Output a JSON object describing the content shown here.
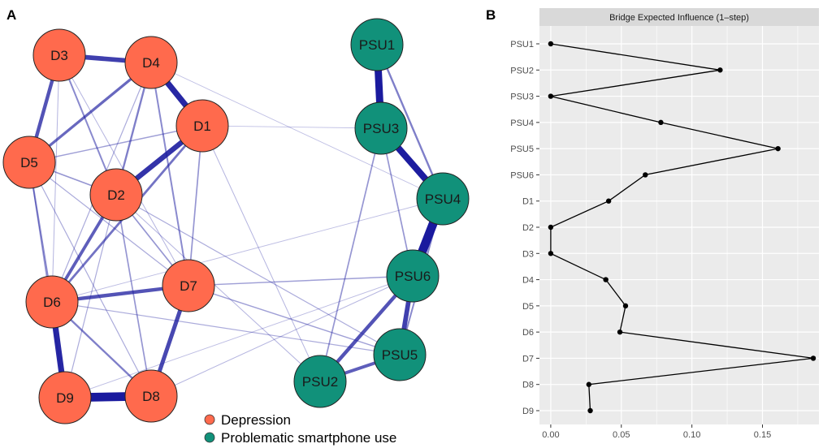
{
  "panels": {
    "a_label": "A",
    "b_label": "B"
  },
  "colors": {
    "depression": "#FF6A4D",
    "psu": "#11917A",
    "edge": "#1a1a9e",
    "panel_bg": "#EBEBEB",
    "strip_bg": "#D9D9D9",
    "grid": "#FFFFFF"
  },
  "network": {
    "nodes": [
      {
        "id": "D3",
        "group": "depression"
      },
      {
        "id": "D4",
        "group": "depression"
      },
      {
        "id": "D1",
        "group": "depression"
      },
      {
        "id": "D5",
        "group": "depression"
      },
      {
        "id": "D2",
        "group": "depression"
      },
      {
        "id": "D6",
        "group": "depression"
      },
      {
        "id": "D7",
        "group": "depression"
      },
      {
        "id": "D9",
        "group": "depression"
      },
      {
        "id": "D8",
        "group": "depression"
      },
      {
        "id": "PSU1",
        "group": "psu"
      },
      {
        "id": "PSU3",
        "group": "psu"
      },
      {
        "id": "PSU4",
        "group": "psu"
      },
      {
        "id": "PSU6",
        "group": "psu"
      },
      {
        "id": "PSU5",
        "group": "psu"
      },
      {
        "id": "PSU2",
        "group": "psu"
      }
    ],
    "edges": [
      {
        "from": "D9",
        "to": "D8",
        "weight": 1.0
      },
      {
        "from": "D6",
        "to": "D9",
        "weight": 0.8
      },
      {
        "from": "D4",
        "to": "D1",
        "weight": 0.8
      },
      {
        "from": "D3",
        "to": "D4",
        "weight": 0.7
      },
      {
        "from": "D1",
        "to": "D2",
        "weight": 0.75
      },
      {
        "from": "D3",
        "to": "D5",
        "weight": 0.6
      },
      {
        "from": "D7",
        "to": "D8",
        "weight": 0.65
      },
      {
        "from": "D6",
        "to": "D7",
        "weight": 0.6
      },
      {
        "from": "D2",
        "to": "D6",
        "weight": 0.55
      },
      {
        "from": "D4",
        "to": "D5",
        "weight": 0.5
      },
      {
        "from": "D4",
        "to": "D2",
        "weight": 0.4
      },
      {
        "from": "D3",
        "to": "D2",
        "weight": 0.35
      },
      {
        "from": "D1",
        "to": "D6",
        "weight": 0.45
      },
      {
        "from": "D4",
        "to": "D7",
        "weight": 0.35
      },
      {
        "from": "D6",
        "to": "D8",
        "weight": 0.4
      },
      {
        "from": "D5",
        "to": "D6",
        "weight": 0.35
      },
      {
        "from": "D5",
        "to": "D2",
        "weight": 0.3
      },
      {
        "from": "D1",
        "to": "D7",
        "weight": 0.3
      },
      {
        "from": "D2",
        "to": "D8",
        "weight": 0.3
      },
      {
        "from": "D5",
        "to": "D9",
        "weight": 0.25
      },
      {
        "from": "D5",
        "to": "D1",
        "weight": 0.25
      },
      {
        "from": "D2",
        "to": "D7",
        "weight": 0.3
      },
      {
        "from": "D9",
        "to": "D2",
        "weight": 0.2
      },
      {
        "from": "D5",
        "to": "D7",
        "weight": 0.2
      },
      {
        "from": "D5",
        "to": "D8",
        "weight": 0.2
      },
      {
        "from": "D3",
        "to": "D6",
        "weight": 0.15
      },
      {
        "from": "D3",
        "to": "D7",
        "weight": 0.15
      },
      {
        "from": "D4",
        "to": "D6",
        "weight": 0.2
      },
      {
        "from": "D6",
        "to": "PSU5",
        "weight": 0.2
      },
      {
        "from": "D2",
        "to": "PSU5",
        "weight": 0.2
      },
      {
        "from": "D7",
        "to": "PSU6",
        "weight": 0.25
      },
      {
        "from": "D7",
        "to": "PSU5",
        "weight": 0.25
      },
      {
        "from": "D8",
        "to": "PSU6",
        "weight": 0.15
      },
      {
        "from": "D4",
        "to": "PSU4",
        "weight": 0.1
      },
      {
        "from": "D1",
        "to": "PSU2",
        "weight": 0.15
      },
      {
        "from": "D1",
        "to": "PSU3",
        "weight": 0.1
      },
      {
        "from": "D6",
        "to": "PSU4",
        "weight": 0.12
      },
      {
        "from": "D9",
        "to": "PSU6",
        "weight": 0.12
      },
      {
        "from": "D2",
        "to": "PSU2",
        "weight": 0.15
      },
      {
        "from": "PSU1",
        "to": "PSU3",
        "weight": 0.9
      },
      {
        "from": "PSU3",
        "to": "PSU4",
        "weight": 0.85
      },
      {
        "from": "PSU4",
        "to": "PSU6",
        "weight": 1.0
      },
      {
        "from": "PSU6",
        "to": "PSU5",
        "weight": 0.7
      },
      {
        "from": "PSU6",
        "to": "PSU2",
        "weight": 0.6
      },
      {
        "from": "PSU5",
        "to": "PSU2",
        "weight": 0.55
      },
      {
        "from": "PSU1",
        "to": "PSU4",
        "weight": 0.4
      },
      {
        "from": "PSU3",
        "to": "PSU2",
        "weight": 0.3
      },
      {
        "from": "PSU4",
        "to": "PSU5",
        "weight": 0.35
      },
      {
        "from": "PSU3",
        "to": "PSU6",
        "weight": 0.3
      }
    ]
  },
  "legend": {
    "depression": "Depression",
    "psu": "Problematic smartphone use"
  },
  "chart_data": {
    "type": "line",
    "title": "Bridge Expected Influence (1–step)",
    "categories": [
      "PSU1",
      "PSU2",
      "PSU3",
      "PSU4",
      "PSU5",
      "PSU6",
      "D1",
      "D2",
      "D3",
      "D4",
      "D5",
      "D6",
      "D7",
      "D8",
      "D9"
    ],
    "values": [
      0.0,
      0.12,
      0.0,
      0.078,
      0.161,
      0.067,
      0.041,
      0.0,
      0.0,
      0.039,
      0.053,
      0.049,
      0.186,
      0.027,
      0.028
    ],
    "xlim": [
      -0.008,
      0.19
    ],
    "xticks": [
      0.0,
      0.05,
      0.1,
      0.15
    ],
    "xtick_labels": [
      "0.00",
      "0.05",
      "0.10",
      "0.15"
    ],
    "xlabel": "",
    "ylabel": "",
    "grid": true
  }
}
